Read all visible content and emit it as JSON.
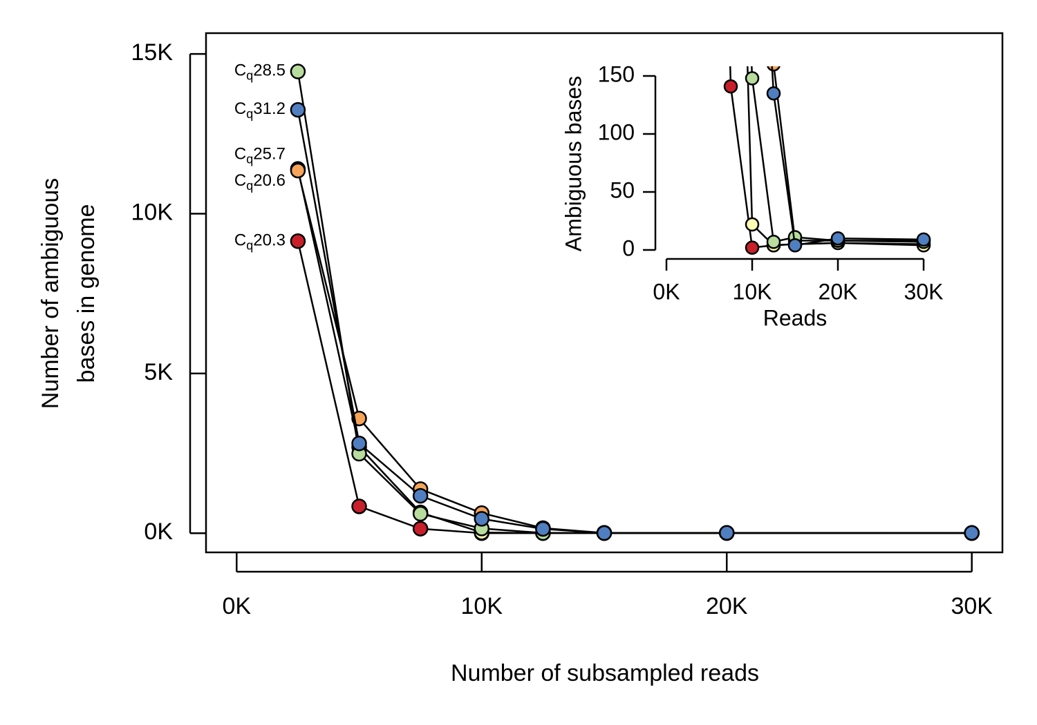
{
  "chart_data": {
    "type": "line",
    "xlabel": "Number of subsampled reads",
    "ylabel": [
      "Number of ambiguous",
      "bases in genome"
    ],
    "x": [
      2500,
      5000,
      7500,
      10000,
      12500,
      15000,
      20000,
      30000
    ],
    "xlim": [
      -1250,
      31250
    ],
    "ylim": [
      -600,
      15650
    ],
    "xticks": [
      {
        "value": 0,
        "label": "0K"
      },
      {
        "value": 10000,
        "label": "10K"
      },
      {
        "value": 20000,
        "label": "20K"
      },
      {
        "value": 30000,
        "label": "30K"
      }
    ],
    "yticks": [
      {
        "value": 0,
        "label": "0K"
      },
      {
        "value": 5000,
        "label": "5K"
      },
      {
        "value": 10000,
        "label": "10K"
      },
      {
        "value": 15000,
        "label": "15K"
      }
    ],
    "series": [
      {
        "name": "Cq20.3",
        "color": "#c8202a",
        "values": [
          9140,
          840,
          141,
          2,
          4,
          5,
          6,
          5
        ]
      },
      {
        "name": "Cq25.7",
        "color": "#fdfbb4",
        "values": [
          11400,
          2700,
          650,
          22,
          4,
          5,
          6,
          4
        ]
      },
      {
        "name": "Cq20.6",
        "color": "#f5a45a",
        "values": [
          11350,
          3590,
          1380,
          630,
          160,
          8,
          8,
          8
        ]
      },
      {
        "name": "Cq28.5",
        "color": "#b7dc9e",
        "values": [
          14450,
          2490,
          610,
          148,
          7,
          11,
          8,
          7
        ]
      },
      {
        "name": "Cq31.2",
        "color": "#4f7fc0",
        "values": [
          13250,
          2810,
          1170,
          450,
          135,
          4,
          10,
          9
        ]
      }
    ],
    "inset": {
      "xlabel": "Reads",
      "ylabel": "Ambiguous bases",
      "xlim": [
        0,
        30000
      ],
      "ylim": [
        0,
        150
      ],
      "xticks": [
        {
          "value": 0,
          "label": "0K"
        },
        {
          "value": 10000,
          "label": "10K"
        },
        {
          "value": 20000,
          "label": "20K"
        },
        {
          "value": 30000,
          "label": "30K"
        }
      ],
      "yticks": [
        0,
        50,
        100,
        150
      ]
    }
  }
}
